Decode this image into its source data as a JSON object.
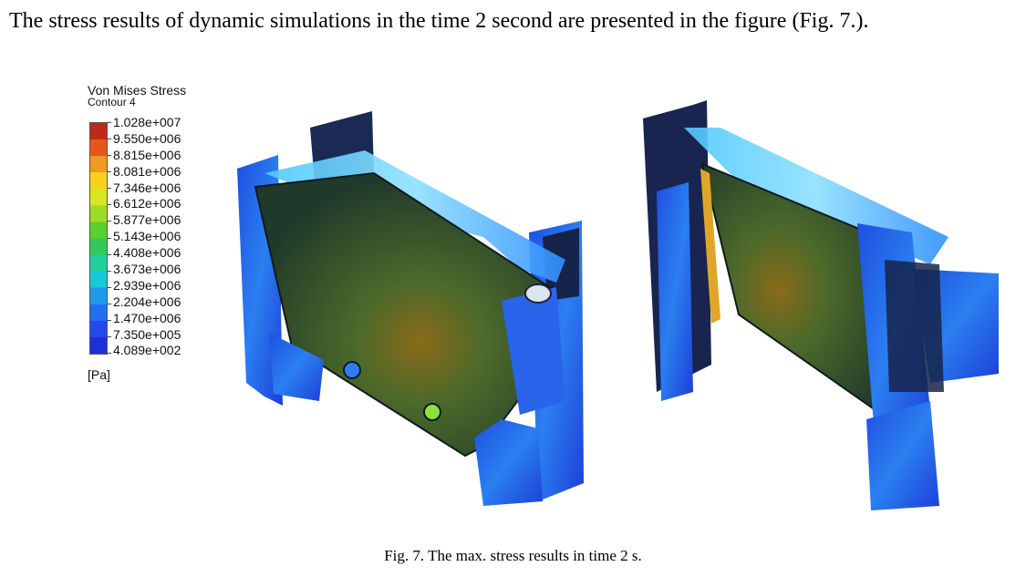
{
  "intro_text": "The stress results of dynamic simulations in the time 2 second are presented in the figure (Fig. 7.).",
  "legend": {
    "title": "Von Mises Stress",
    "subtitle": "Contour 4",
    "levels": [
      "1.028e+007",
      "9.550e+006",
      "8.815e+006",
      "8.081e+006",
      "7.346e+006",
      "6.612e+006",
      "5.877e+006",
      "5.143e+006",
      "4.408e+006",
      "3.673e+006",
      "2.939e+006",
      "2.204e+006",
      "1.470e+006",
      "7.350e+005",
      "4.089e+002"
    ],
    "unit": "[Pa]",
    "colors": [
      "#c0281a",
      "#e8551a",
      "#f19a1e",
      "#f5d21e",
      "#d6e61f",
      "#9ddc24",
      "#58d22c",
      "#2fca5a",
      "#1ed19b",
      "#17c9d6",
      "#1a9ae8",
      "#1f6ff0",
      "#2648ec",
      "#1e2fd8"
    ]
  },
  "caption": "Fig. 7. The max. stress results in time 2 s."
}
